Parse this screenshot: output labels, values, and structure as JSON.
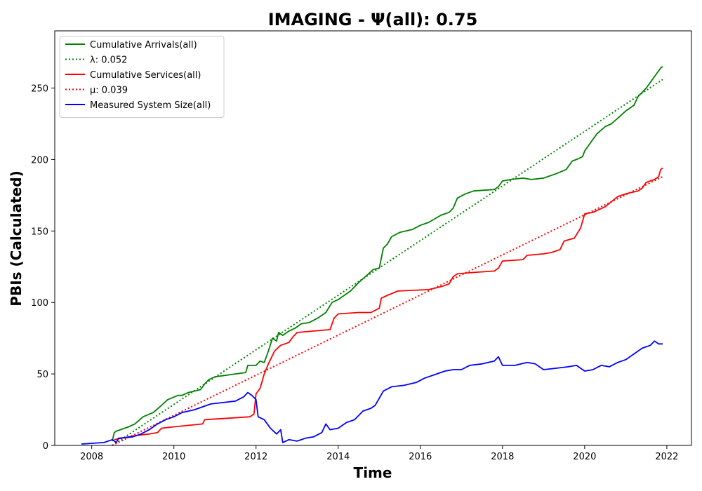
{
  "chart_data": {
    "type": "line",
    "title": "IMAGING -  Ψ(all): 0.75",
    "xlabel": "Time",
    "ylabel": "PBIs (Calculated)",
    "xlim": [
      2007.1,
      2022.6
    ],
    "ylim": [
      0,
      290
    ],
    "x_ticks": [
      2008,
      2010,
      2012,
      2014,
      2016,
      2018,
      2020,
      2022
    ],
    "y_ticks": [
      0,
      50,
      100,
      150,
      200,
      250
    ],
    "grid": false,
    "legend_position": "top-left",
    "series": [
      {
        "name": "Cumulative Arrivals(all)",
        "style": "solid",
        "color": "#008000",
        "points": [
          [
            2008.5,
            3
          ],
          [
            2008.55,
            9
          ],
          [
            2008.6,
            10
          ],
          [
            2008.9,
            13
          ],
          [
            2009.05,
            15
          ],
          [
            2009.25,
            20
          ],
          [
            2009.5,
            23
          ],
          [
            2009.7,
            28
          ],
          [
            2009.85,
            32
          ],
          [
            2010.1,
            35
          ],
          [
            2010.2,
            35
          ],
          [
            2010.35,
            37
          ],
          [
            2010.65,
            39
          ],
          [
            2010.75,
            43
          ],
          [
            2010.85,
            46
          ],
          [
            2011.0,
            48
          ],
          [
            2011.5,
            50
          ],
          [
            2011.75,
            51
          ],
          [
            2011.8,
            56
          ],
          [
            2012.0,
            56
          ],
          [
            2012.1,
            59
          ],
          [
            2012.2,
            58
          ],
          [
            2012.3,
            66
          ],
          [
            2012.4,
            75
          ],
          [
            2012.5,
            73
          ],
          [
            2012.55,
            79
          ],
          [
            2012.65,
            77
          ],
          [
            2012.8,
            80
          ],
          [
            2012.95,
            82
          ],
          [
            2013.1,
            85
          ],
          [
            2013.3,
            86
          ],
          [
            2013.5,
            89
          ],
          [
            2013.7,
            93
          ],
          [
            2013.85,
            100
          ],
          [
            2014.0,
            102
          ],
          [
            2014.3,
            108
          ],
          [
            2014.5,
            114
          ],
          [
            2014.7,
            119
          ],
          [
            2014.85,
            123
          ],
          [
            2015.0,
            124
          ],
          [
            2015.1,
            138
          ],
          [
            2015.2,
            141
          ],
          [
            2015.3,
            146
          ],
          [
            2015.5,
            149
          ],
          [
            2015.8,
            151
          ],
          [
            2016.0,
            154
          ],
          [
            2016.2,
            156
          ],
          [
            2016.5,
            161
          ],
          [
            2016.7,
            163
          ],
          [
            2016.8,
            166
          ],
          [
            2016.9,
            173
          ],
          [
            2017.1,
            176
          ],
          [
            2017.3,
            178
          ],
          [
            2017.8,
            179
          ],
          [
            2017.9,
            181
          ],
          [
            2018.0,
            185
          ],
          [
            2018.2,
            186
          ],
          [
            2018.5,
            187
          ],
          [
            2018.7,
            186
          ],
          [
            2019.0,
            187
          ],
          [
            2019.3,
            190
          ],
          [
            2019.55,
            193
          ],
          [
            2019.7,
            199
          ],
          [
            2019.8,
            200
          ],
          [
            2019.95,
            202
          ],
          [
            2020.0,
            206
          ],
          [
            2020.15,
            212
          ],
          [
            2020.3,
            218
          ],
          [
            2020.5,
            223
          ],
          [
            2020.65,
            225
          ],
          [
            2020.85,
            230
          ],
          [
            2021.0,
            234
          ],
          [
            2021.2,
            238
          ],
          [
            2021.3,
            244
          ],
          [
            2021.5,
            250
          ],
          [
            2021.65,
            256
          ],
          [
            2021.75,
            260
          ],
          [
            2021.85,
            264
          ],
          [
            2021.9,
            265
          ]
        ]
      },
      {
        "name": "λ: 0.052",
        "style": "dotted",
        "color": "#008000",
        "points": [
          [
            2008.5,
            0
          ],
          [
            2021.9,
            256
          ]
        ]
      },
      {
        "name": "Cumulative Services(all)",
        "style": "solid",
        "color": "#ff0000",
        "points": [
          [
            2008.55,
            4
          ],
          [
            2008.9,
            6
          ],
          [
            2009.1,
            7
          ],
          [
            2009.4,
            8
          ],
          [
            2009.6,
            9
          ],
          [
            2009.7,
            12
          ],
          [
            2010.0,
            13
          ],
          [
            2010.7,
            15
          ],
          [
            2010.75,
            18
          ],
          [
            2011.3,
            19
          ],
          [
            2011.85,
            20
          ],
          [
            2011.95,
            22
          ],
          [
            2012.0,
            36
          ],
          [
            2012.1,
            40
          ],
          [
            2012.2,
            50
          ],
          [
            2012.3,
            57
          ],
          [
            2012.45,
            66
          ],
          [
            2012.6,
            70
          ],
          [
            2012.8,
            72
          ],
          [
            2012.9,
            76
          ],
          [
            2013.0,
            79
          ],
          [
            2013.8,
            81
          ],
          [
            2013.9,
            89
          ],
          [
            2014.0,
            92
          ],
          [
            2014.5,
            93
          ],
          [
            2014.8,
            93
          ],
          [
            2015.0,
            96
          ],
          [
            2015.05,
            103
          ],
          [
            2015.2,
            105
          ],
          [
            2015.45,
            108
          ],
          [
            2016.2,
            109
          ],
          [
            2016.5,
            111
          ],
          [
            2016.7,
            113
          ],
          [
            2016.8,
            118
          ],
          [
            2016.9,
            120
          ],
          [
            2017.3,
            121
          ],
          [
            2017.8,
            122
          ],
          [
            2017.9,
            124
          ],
          [
            2018.0,
            129
          ],
          [
            2018.5,
            130
          ],
          [
            2018.6,
            133
          ],
          [
            2019.0,
            134
          ],
          [
            2019.2,
            135
          ],
          [
            2019.4,
            137
          ],
          [
            2019.5,
            143
          ],
          [
            2019.75,
            145
          ],
          [
            2019.9,
            152
          ],
          [
            2020.0,
            162
          ],
          [
            2020.2,
            163
          ],
          [
            2020.5,
            167
          ],
          [
            2020.8,
            174
          ],
          [
            2021.0,
            176
          ],
          [
            2021.3,
            178
          ],
          [
            2021.4,
            180
          ],
          [
            2021.5,
            184
          ],
          [
            2021.7,
            186
          ],
          [
            2021.8,
            188
          ],
          [
            2021.85,
            193
          ],
          [
            2021.9,
            194
          ]
        ]
      },
      {
        "name": "μ: 0.039",
        "style": "dotted",
        "color": "#ff0000",
        "points": [
          [
            2008.5,
            0
          ],
          [
            2021.9,
            188
          ]
        ]
      },
      {
        "name": "Measured System Size(all)",
        "style": "solid",
        "color": "#0000ff",
        "points": [
          [
            2007.75,
            1
          ],
          [
            2008.3,
            2
          ],
          [
            2008.5,
            4
          ],
          [
            2008.6,
            2
          ],
          [
            2008.65,
            5
          ],
          [
            2009.0,
            6
          ],
          [
            2009.2,
            8
          ],
          [
            2009.4,
            11
          ],
          [
            2009.6,
            15
          ],
          [
            2009.8,
            18
          ],
          [
            2010.0,
            20
          ],
          [
            2010.2,
            23
          ],
          [
            2010.5,
            25
          ],
          [
            2010.7,
            27
          ],
          [
            2010.9,
            29
          ],
          [
            2011.2,
            30
          ],
          [
            2011.5,
            31
          ],
          [
            2011.7,
            34
          ],
          [
            2011.8,
            37
          ],
          [
            2011.9,
            35
          ],
          [
            2012.0,
            32
          ],
          [
            2012.05,
            20
          ],
          [
            2012.2,
            18
          ],
          [
            2012.35,
            12
          ],
          [
            2012.5,
            8
          ],
          [
            2012.6,
            11
          ],
          [
            2012.65,
            2
          ],
          [
            2012.8,
            4
          ],
          [
            2013.0,
            3
          ],
          [
            2013.2,
            5
          ],
          [
            2013.4,
            6
          ],
          [
            2013.6,
            9
          ],
          [
            2013.7,
            15
          ],
          [
            2013.8,
            11
          ],
          [
            2014.0,
            12
          ],
          [
            2014.2,
            16
          ],
          [
            2014.4,
            18
          ],
          [
            2014.6,
            24
          ],
          [
            2014.8,
            26
          ],
          [
            2014.9,
            28
          ],
          [
            2015.0,
            33
          ],
          [
            2015.1,
            38
          ],
          [
            2015.3,
            41
          ],
          [
            2015.6,
            42
          ],
          [
            2015.9,
            44
          ],
          [
            2016.1,
            47
          ],
          [
            2016.4,
            50
          ],
          [
            2016.6,
            52
          ],
          [
            2016.8,
            53
          ],
          [
            2017.0,
            53
          ],
          [
            2017.2,
            56
          ],
          [
            2017.5,
            57
          ],
          [
            2017.8,
            59
          ],
          [
            2017.9,
            62
          ],
          [
            2018.0,
            56
          ],
          [
            2018.3,
            56
          ],
          [
            2018.6,
            58
          ],
          [
            2018.8,
            57
          ],
          [
            2019.0,
            53
          ],
          [
            2019.3,
            54
          ],
          [
            2019.6,
            55
          ],
          [
            2019.8,
            56
          ],
          [
            2019.9,
            54
          ],
          [
            2020.0,
            52
          ],
          [
            2020.2,
            53
          ],
          [
            2020.4,
            56
          ],
          [
            2020.6,
            55
          ],
          [
            2020.8,
            58
          ],
          [
            2021.0,
            60
          ],
          [
            2021.2,
            64
          ],
          [
            2021.4,
            68
          ],
          [
            2021.6,
            70
          ],
          [
            2021.7,
            73
          ],
          [
            2021.8,
            71
          ],
          [
            2021.9,
            71
          ]
        ]
      }
    ]
  }
}
